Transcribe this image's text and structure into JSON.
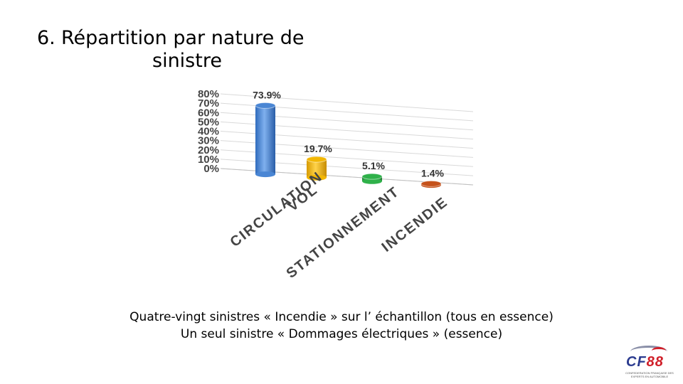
{
  "header": {
    "number": "6.",
    "title_line1": "Répartition par nature de",
    "title_line2": "sinistre"
  },
  "chart_data": {
    "type": "bar",
    "categories": [
      "CIRCULATION",
      "VOL",
      "STATIONNEMENT",
      "INCENDIE"
    ],
    "values": [
      73.9,
      19.7,
      5.1,
      1.4
    ],
    "value_labels": [
      "73.9%",
      "19.7%",
      "5.1%",
      "1.4%"
    ],
    "colors": [
      "#4a86d4",
      "#f2b705",
      "#2fb14a",
      "#c5521b"
    ],
    "yticks": [
      "0%",
      "10%",
      "20%",
      "30%",
      "40%",
      "50%",
      "60%",
      "70%",
      "80%"
    ],
    "ylim": [
      0,
      80
    ],
    "grid": true,
    "style": "3d-cylinder"
  },
  "caption": {
    "line1": "Quatre-vingt sinistres « Incendie » sur l’ échantillon (tous en essence)",
    "line2": "Un seul sinistre « Dommages électriques » (essence)"
  },
  "logo": {
    "text_a": "CF",
    "text_b": "88",
    "subtitle": "CONFEDERATION FRANÇAISE DES EXPERTS EN AUTOMOBILE"
  }
}
